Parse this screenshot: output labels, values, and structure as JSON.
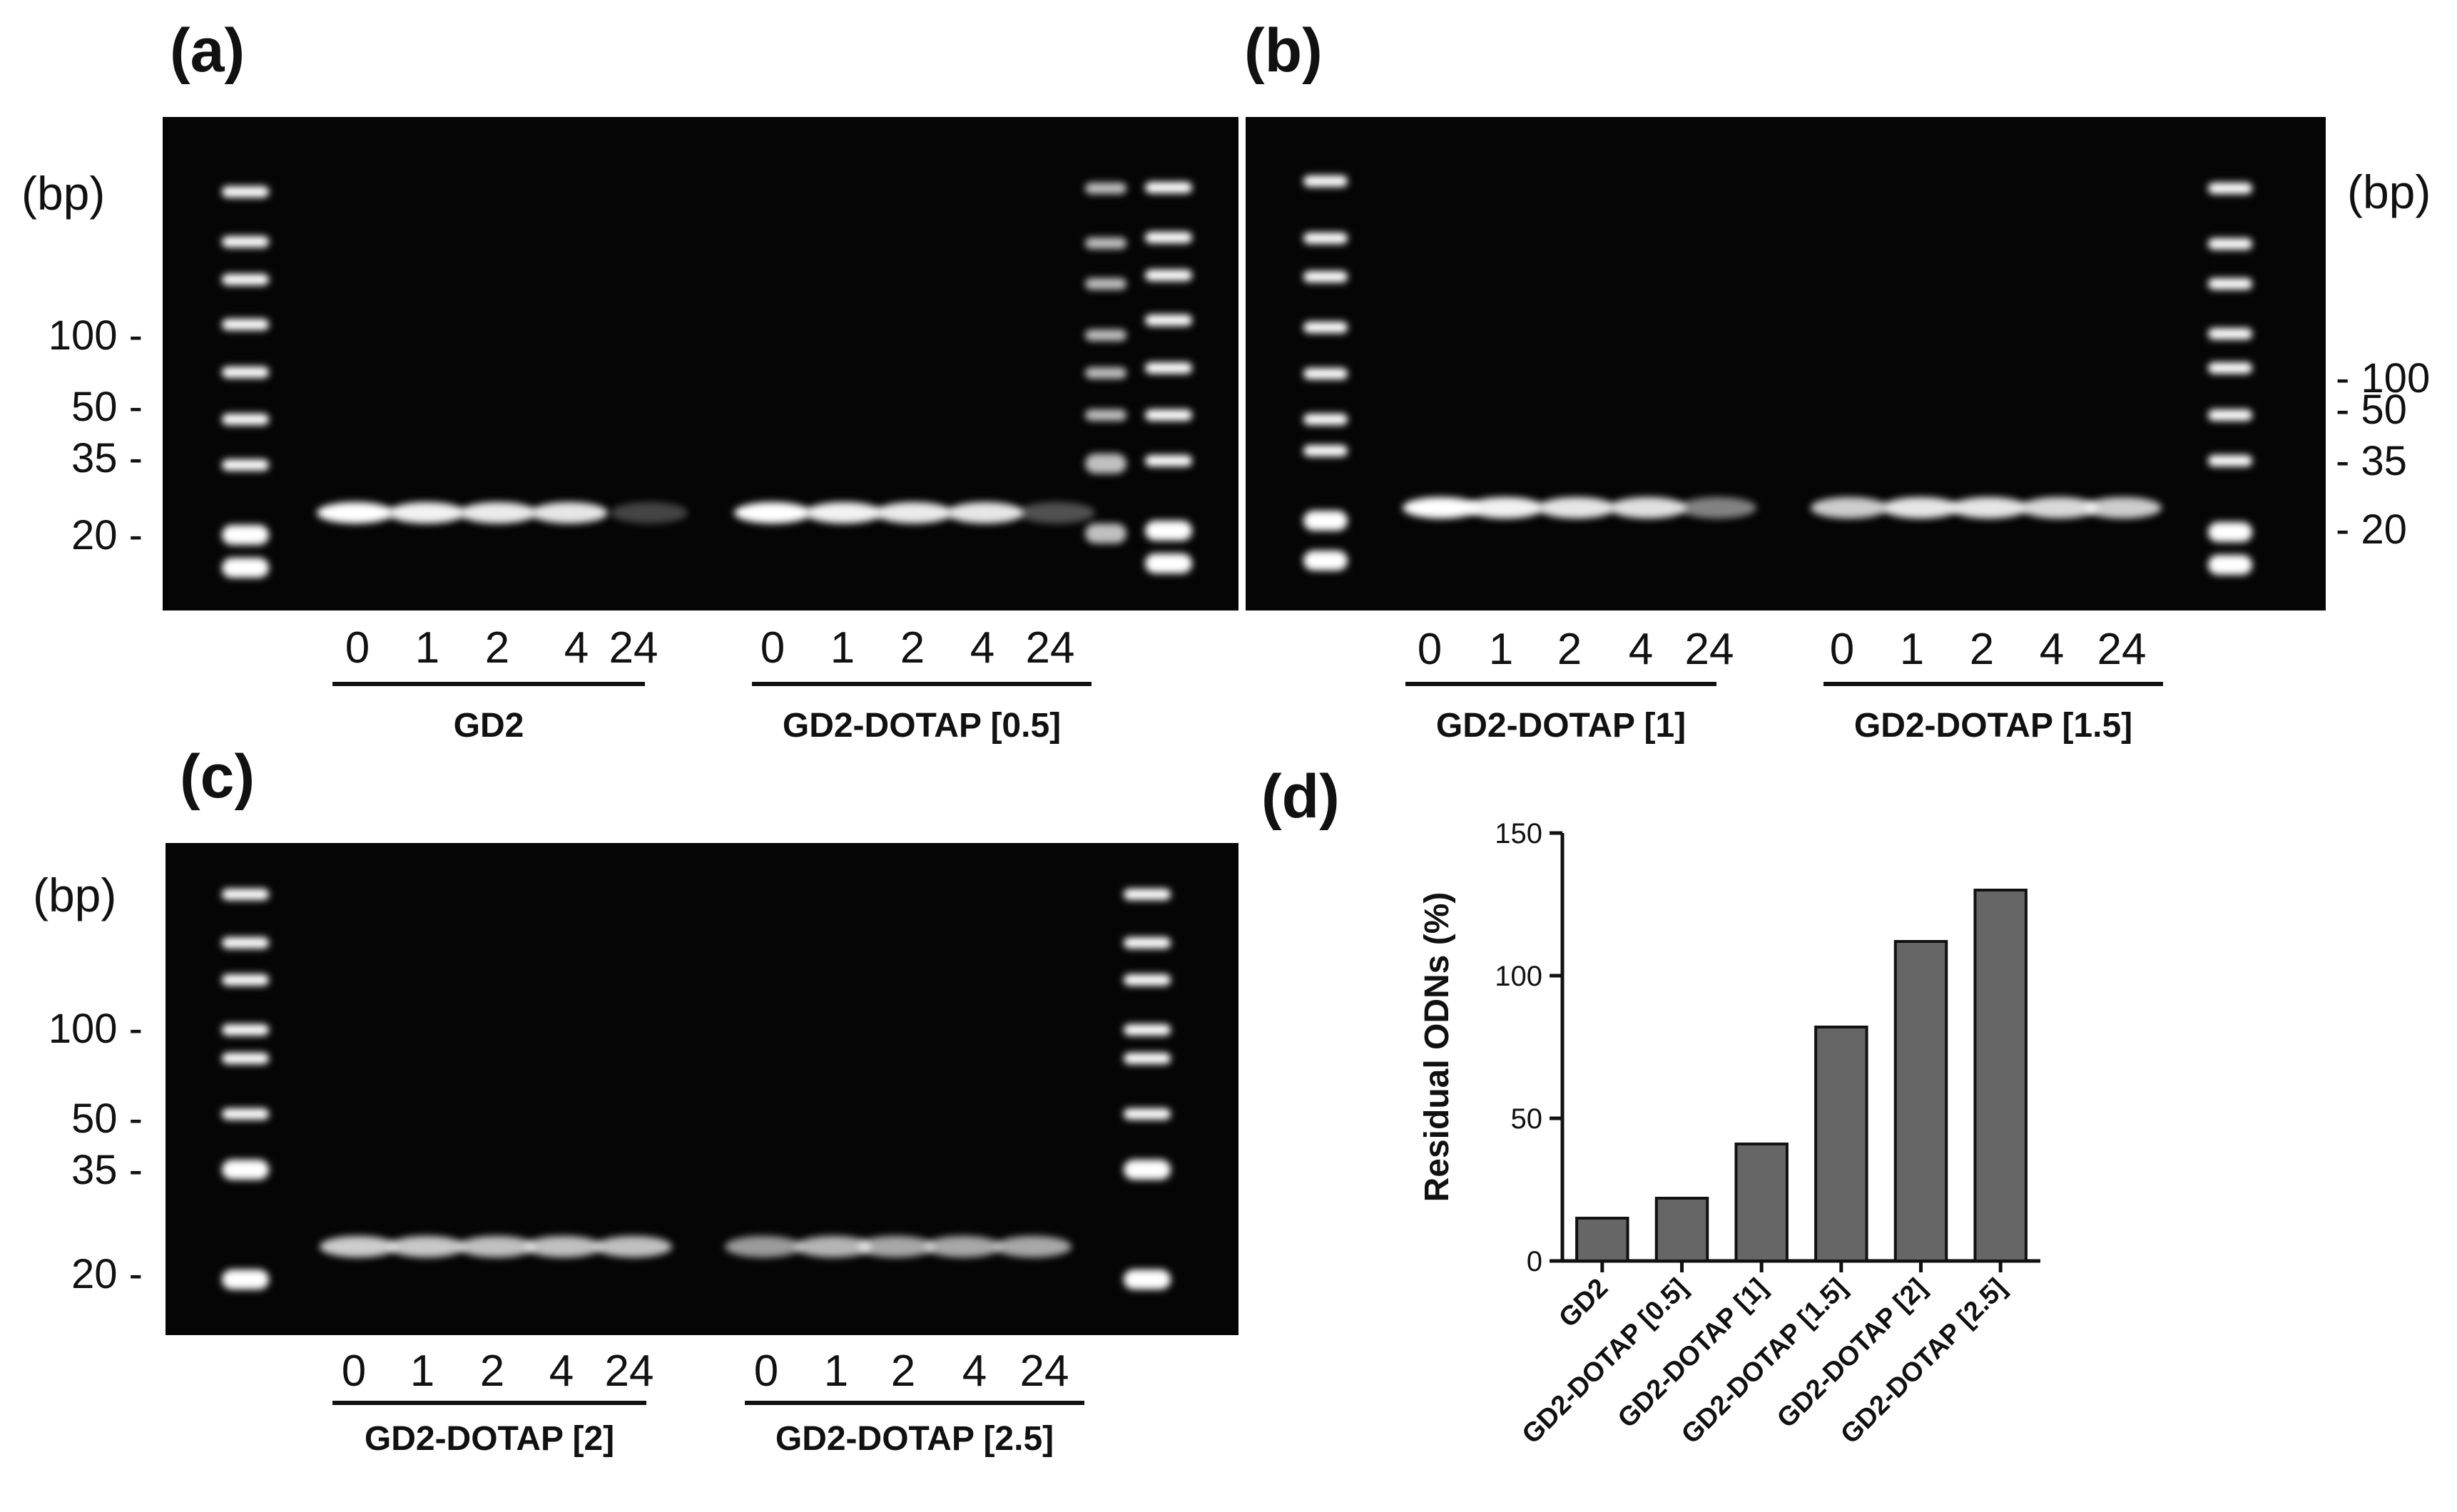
{
  "panels": {
    "a": {
      "label": "(a)",
      "bp_title": "(bp)",
      "ticks": [
        "100 -",
        "50 -",
        "35 -",
        "20 -"
      ],
      "groups": [
        {
          "name": "GD2",
          "lanes": [
            "0",
            "1",
            "2",
            "4",
            "24"
          ],
          "band_intensity": [
            1.0,
            0.95,
            0.92,
            0.9,
            0.25
          ]
        },
        {
          "name": "GD2-DOTAP [0.5]",
          "lanes": [
            "0",
            "1",
            "2",
            "4",
            "24"
          ],
          "band_intensity": [
            1.0,
            0.95,
            0.92,
            0.9,
            0.3
          ]
        }
      ]
    },
    "b": {
      "label": "(b)",
      "bp_title": "(bp)",
      "ticks": [
        "- 100",
        "- 50",
        "- 35",
        "- 20"
      ],
      "groups": [
        {
          "name": "GD2-DOTAP [1]",
          "lanes": [
            "0",
            "1",
            "2",
            "4",
            "24"
          ],
          "band_intensity": [
            1.0,
            0.95,
            0.9,
            0.88,
            0.5
          ]
        },
        {
          "name": "GD2-DOTAP [1.5]",
          "lanes": [
            "0",
            "1",
            "2",
            "4",
            "24"
          ],
          "band_intensity": [
            0.8,
            0.9,
            0.9,
            0.85,
            0.8
          ]
        }
      ]
    },
    "c": {
      "label": "(c)",
      "bp_title": "(bp)",
      "ticks": [
        "100 -",
        "50 -",
        "35 -",
        "20 -"
      ],
      "groups": [
        {
          "name": "GD2-DOTAP [2]",
          "lanes": [
            "0",
            "1",
            "2",
            "4",
            "24"
          ],
          "band_intensity": [
            0.8,
            0.78,
            0.75,
            0.75,
            0.75
          ]
        },
        {
          "name": "GD2-DOTAP [2.5]",
          "lanes": [
            "0",
            "1",
            "2",
            "4",
            "24"
          ],
          "band_intensity": [
            0.6,
            0.7,
            0.65,
            0.65,
            0.65
          ]
        }
      ]
    },
    "d": {
      "label": "(d)"
    }
  },
  "chart_data": {
    "type": "bar",
    "categories": [
      "GD2",
      "GD2-DOTAP [0.5]",
      "GD2-DOTAP [1]",
      "GD2-DOTAP [1.5]",
      "GD2-DOTAP [2]",
      "GD2-DOTAP [2.5]"
    ],
    "values": [
      15,
      22,
      41,
      82,
      112,
      130
    ],
    "title": "",
    "xlabel": "",
    "ylabel": "Residual ODNs (%)",
    "ylim": [
      0,
      150
    ],
    "yticks": [
      0,
      50,
      100,
      150
    ],
    "bar_color": "#666666",
    "grid": false
  }
}
